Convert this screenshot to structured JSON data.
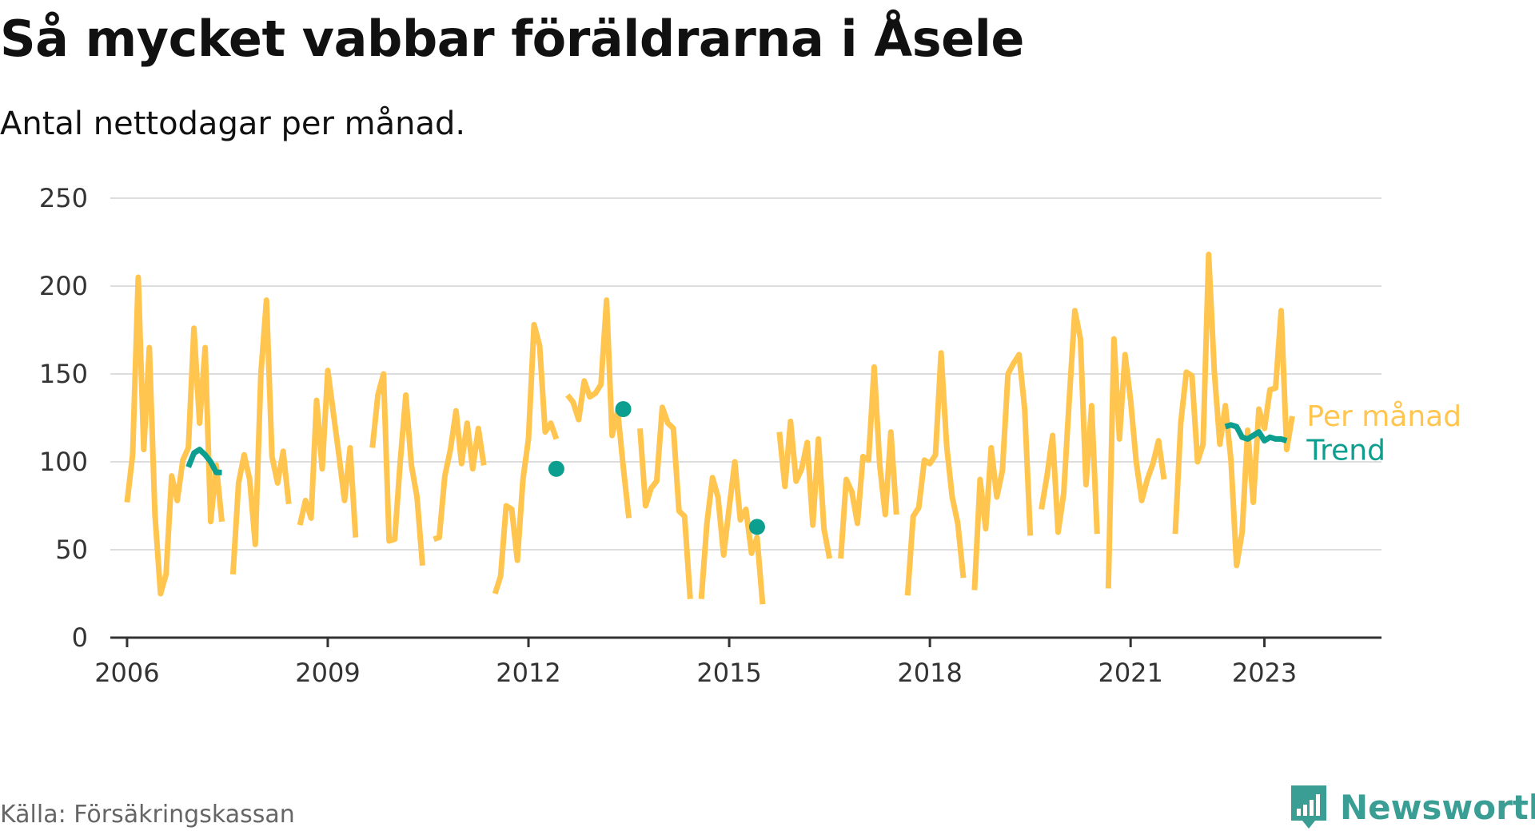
{
  "header": {
    "title": "Så mycket vabbar föräldrarna i Åsele",
    "subtitle": "Antal nettodagar per månad."
  },
  "footer": {
    "source": "Källa: Försäkringskassan",
    "brand": "Newsworthy",
    "brand_icon": "newsworthy-logo-icon"
  },
  "colors": {
    "per_manad": "#FFC54E",
    "trend": "#0C9E8E",
    "grid": "#dddddd",
    "axis": "#333333"
  },
  "chart_data": {
    "type": "line",
    "title": "Så mycket vabbar föräldrarna i Åsele",
    "subtitle": "Antal nettodagar per månad.",
    "xlabel": "",
    "ylabel": "",
    "ylim": [
      0,
      250
    ],
    "xlim": [
      "2005-10",
      "2024-10"
    ],
    "y_ticks": [
      0,
      50,
      100,
      150,
      200,
      250
    ],
    "x_ticks": [
      "2006",
      "2009",
      "2012",
      "2015",
      "2018",
      "2021",
      "2023"
    ],
    "grid": true,
    "series_labels_position": "right-end",
    "series": [
      {
        "name": "Per månad",
        "color": "#FFC54E",
        "segments": [
          [
            [
              "2006-01",
              77
            ],
            [
              "2006-02",
              104
            ],
            [
              "2006-03",
              205
            ],
            [
              "2006-04",
              107
            ],
            [
              "2006-05",
              165
            ],
            [
              "2006-06",
              70
            ],
            [
              "2006-07",
              25
            ],
            [
              "2006-08",
              36
            ],
            [
              "2006-09",
              92
            ],
            [
              "2006-10",
              78
            ],
            [
              "2006-11",
              101
            ],
            [
              "2006-12",
              108
            ],
            [
              "2007-01",
              176
            ],
            [
              "2007-02",
              122
            ],
            [
              "2007-03",
              165
            ],
            [
              "2007-04",
              66
            ],
            [
              "2007-05",
              98
            ],
            [
              "2007-06",
              66
            ]
          ],
          [
            [
              "2007-08",
              36
            ],
            [
              "2007-09",
              88
            ],
            [
              "2007-10",
              104
            ],
            [
              "2007-11",
              90
            ],
            [
              "2007-12",
              53
            ],
            [
              "2008-01",
              150
            ],
            [
              "2008-02",
              192
            ],
            [
              "2008-03",
              103
            ],
            [
              "2008-04",
              88
            ],
            [
              "2008-05",
              106
            ],
            [
              "2008-06",
              76
            ]
          ],
          [
            [
              "2008-08",
              64
            ],
            [
              "2008-09",
              78
            ],
            [
              "2008-10",
              68
            ],
            [
              "2008-11",
              135
            ],
            [
              "2008-12",
              96
            ],
            [
              "2009-01",
              152
            ],
            [
              "2009-02",
              128
            ],
            [
              "2009-03",
              104
            ],
            [
              "2009-04",
              78
            ],
            [
              "2009-05",
              108
            ],
            [
              "2009-06",
              57
            ]
          ],
          [
            [
              "2009-09",
              108
            ],
            [
              "2009-10",
              138
            ],
            [
              "2009-11",
              150
            ],
            [
              "2009-12",
              55
            ],
            [
              "2010-01",
              56
            ],
            [
              "2010-02",
              100
            ],
            [
              "2010-03",
              138
            ],
            [
              "2010-04",
              98
            ],
            [
              "2010-05",
              80
            ],
            [
              "2010-06",
              41
            ]
          ],
          [
            [
              "2010-08",
              56
            ],
            [
              "2010-09",
              57
            ],
            [
              "2010-10",
              92
            ],
            [
              "2010-11",
              107
            ],
            [
              "2010-12",
              129
            ],
            [
              "2011-01",
              99
            ],
            [
              "2011-02",
              122
            ],
            [
              "2011-03",
              96
            ],
            [
              "2011-04",
              119
            ],
            [
              "2011-05",
              98
            ]
          ],
          [
            [
              "2011-07",
              25
            ],
            [
              "2011-08",
              35
            ],
            [
              "2011-09",
              75
            ],
            [
              "2011-10",
              73
            ],
            [
              "2011-11",
              44
            ],
            [
              "2011-12",
              90
            ],
            [
              "2012-01",
              113
            ],
            [
              "2012-02",
              178
            ],
            [
              "2012-03",
              166
            ],
            [
              "2012-04",
              117
            ],
            [
              "2012-05",
              122
            ],
            [
              "2012-06",
              113
            ]
          ],
          [
            [
              "2012-08",
              138
            ],
            [
              "2012-09",
              134
            ],
            [
              "2012-10",
              124
            ],
            [
              "2012-11",
              146
            ],
            [
              "2012-12",
              137
            ],
            [
              "2013-01",
              139
            ],
            [
              "2013-02",
              144
            ],
            [
              "2013-03",
              192
            ],
            [
              "2013-04",
              115
            ],
            [
              "2013-05",
              129
            ],
            [
              "2013-06",
              97
            ],
            [
              "2013-07",
              68
            ]
          ],
          [
            [
              "2013-09",
              119
            ],
            [
              "2013-10",
              75
            ],
            [
              "2013-11",
              85
            ],
            [
              "2013-12",
              89
            ],
            [
              "2014-01",
              131
            ],
            [
              "2014-02",
              122
            ],
            [
              "2014-03",
              119
            ],
            [
              "2014-04",
              72
            ],
            [
              "2014-05",
              69
            ],
            [
              "2014-06",
              22
            ]
          ],
          [
            [
              "2014-08",
              22
            ],
            [
              "2014-09",
              65
            ],
            [
              "2014-10",
              91
            ],
            [
              "2014-11",
              80
            ],
            [
              "2014-12",
              47
            ],
            [
              "2015-01",
              74
            ],
            [
              "2015-02",
              100
            ],
            [
              "2015-03",
              67
            ],
            [
              "2015-04",
              73
            ],
            [
              "2015-05",
              48
            ],
            [
              "2015-06",
              57
            ],
            [
              "2015-07",
              19
            ]
          ],
          [
            [
              "2015-10",
              117
            ],
            [
              "2015-11",
              86
            ],
            [
              "2015-12",
              123
            ],
            [
              "2016-01",
              89
            ],
            [
              "2016-02",
              96
            ],
            [
              "2016-03",
              111
            ],
            [
              "2016-04",
              64
            ],
            [
              "2016-05",
              113
            ],
            [
              "2016-06",
              62
            ],
            [
              "2016-07",
              45
            ]
          ],
          [
            [
              "2016-09",
              45
            ],
            [
              "2016-10",
              90
            ],
            [
              "2016-11",
              83
            ],
            [
              "2016-12",
              65
            ],
            [
              "2017-01",
              103
            ],
            [
              "2017-02",
              101
            ],
            [
              "2017-03",
              154
            ],
            [
              "2017-04",
              98
            ],
            [
              "2017-05",
              70
            ],
            [
              "2017-06",
              117
            ],
            [
              "2017-07",
              70
            ]
          ],
          [
            [
              "2017-09",
              24
            ],
            [
              "2017-10",
              69
            ],
            [
              "2017-11",
              74
            ],
            [
              "2017-12",
              101
            ],
            [
              "2018-01",
              99
            ],
            [
              "2018-02",
              104
            ],
            [
              "2018-03",
              162
            ],
            [
              "2018-04",
              109
            ],
            [
              "2018-05",
              80
            ],
            [
              "2018-06",
              65
            ],
            [
              "2018-07",
              34
            ]
          ],
          [
            [
              "2018-09",
              27
            ],
            [
              "2018-10",
              90
            ],
            [
              "2018-11",
              62
            ],
            [
              "2018-12",
              108
            ],
            [
              "2019-01",
              80
            ],
            [
              "2019-02",
              95
            ],
            [
              "2019-03",
              150
            ],
            [
              "2019-04",
              156
            ],
            [
              "2019-05",
              161
            ],
            [
              "2019-06",
              130
            ],
            [
              "2019-07",
              58
            ]
          ],
          [
            [
              "2019-09",
              73
            ],
            [
              "2019-10",
              92
            ],
            [
              "2019-11",
              115
            ],
            [
              "2019-12",
              60
            ],
            [
              "2020-01",
              82
            ],
            [
              "2020-02",
              136
            ],
            [
              "2020-03",
              186
            ],
            [
              "2020-04",
              170
            ],
            [
              "2020-05",
              87
            ],
            [
              "2020-06",
              132
            ],
            [
              "2020-07",
              59
            ]
          ],
          [
            [
              "2020-09",
              28
            ],
            [
              "2020-10",
              170
            ],
            [
              "2020-11",
              113
            ],
            [
              "2020-12",
              161
            ],
            [
              "2021-01",
              135
            ],
            [
              "2021-02",
              100
            ],
            [
              "2021-03",
              78
            ],
            [
              "2021-04",
              90
            ],
            [
              "2021-05",
              99
            ],
            [
              "2021-06",
              112
            ],
            [
              "2021-07",
              90
            ]
          ],
          [
            [
              "2021-09",
              59
            ],
            [
              "2021-10",
              122
            ],
            [
              "2021-11",
              151
            ],
            [
              "2021-12",
              149
            ],
            [
              "2022-01",
              100
            ],
            [
              "2022-02",
              110
            ],
            [
              "2022-03",
              218
            ],
            [
              "2022-04",
              152
            ],
            [
              "2022-05",
              110
            ],
            [
              "2022-06",
              132
            ],
            [
              "2022-07",
              101
            ],
            [
              "2022-08",
              41
            ],
            [
              "2022-09",
              60
            ],
            [
              "2022-10",
              118
            ],
            [
              "2022-11",
              77
            ],
            [
              "2022-12",
              130
            ],
            [
              "2023-01",
              119
            ],
            [
              "2023-02",
              141
            ],
            [
              "2023-03",
              142
            ],
            [
              "2023-04",
              186
            ],
            [
              "2023-05",
              107
            ],
            [
              "2023-06",
              126
            ]
          ]
        ]
      },
      {
        "name": "Trend",
        "color": "#0C9E8E",
        "segments": [
          [
            [
              "2006-12",
              97
            ],
            [
              "2007-01",
              105
            ],
            [
              "2007-02",
              107
            ],
            [
              "2007-03",
              104
            ],
            [
              "2007-04",
              100
            ],
            [
              "2007-05",
              94
            ],
            [
              "2007-06",
              94
            ]
          ],
          [
            [
              "2022-06",
              120
            ],
            [
              "2022-07",
              121
            ],
            [
              "2022-08",
              120
            ],
            [
              "2022-09",
              114
            ],
            [
              "2022-10",
              113
            ],
            [
              "2022-11",
              115
            ],
            [
              "2022-12",
              117
            ],
            [
              "2023-01",
              112
            ],
            [
              "2023-02",
              114
            ],
            [
              "2023-03",
              113
            ],
            [
              "2023-04",
              113
            ],
            [
              "2023-05",
              112
            ]
          ]
        ],
        "points": [
          [
            "2012-06",
            96
          ],
          [
            "2013-06",
            130
          ],
          [
            "2015-06",
            63
          ]
        ]
      }
    ]
  }
}
